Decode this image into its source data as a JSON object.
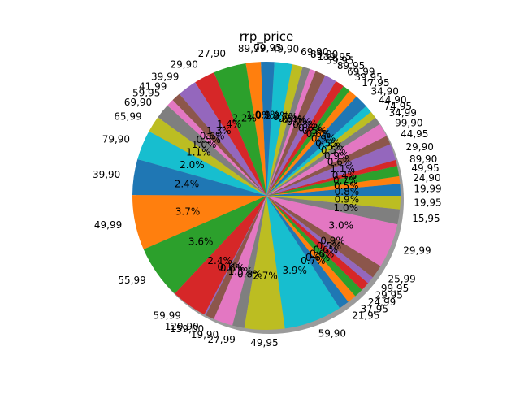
{
  "chart_data": {
    "type": "pie",
    "title": "rrp_price",
    "shadow": true,
    "legend": "none",
    "palette": [
      "#1f77b4",
      "#ff7f0e",
      "#2ca02c",
      "#d62728",
      "#9467bd",
      "#8c564b",
      "#e377c2",
      "#7f7f7f",
      "#bcbd22",
      "#17becf"
    ],
    "slices": [
      {
        "label": "19,99",
        "pct": "0.8%"
      },
      {
        "label": "24,90",
        "pct": "0.5%"
      },
      {
        "label": "49,95",
        "pct": "0.7%"
      },
      {
        "label": "89,90",
        "pct": "0.4%"
      },
      {
        "label": "29,90",
        "pct": "1.1%"
      },
      {
        "label": "44,95",
        "pct": "0.6%"
      },
      {
        "label": "99,90",
        "pct": "0.9%"
      },
      {
        "label": "34,99",
        "pct": "0.5%"
      },
      {
        "label": "74,95",
        "pct": "0.5%"
      },
      {
        "label": "44,90",
        "pct": "0.5%"
      },
      {
        "label": "34,90",
        "pct": "0.9%"
      },
      {
        "label": "17,95",
        "pct": "0.6%"
      },
      {
        "label": "39,95",
        "pct": "0.5%"
      },
      {
        "label": "69,99",
        "pct": "0.6%"
      },
      {
        "label": "89,95",
        "pct": "0.8%"
      },
      {
        "label": "59,95",
        "pct": "0.7%"
      },
      {
        "label": "139,95",
        "pct": "0.4%"
      },
      {
        "label": "89,90",
        "pct": "0.5%"
      },
      {
        "label": "69,90",
        "pct": "0.7%"
      },
      {
        "label": "49,90",
        "pct": "1.2%"
      },
      {
        "label": "79,95",
        "pct": "0.9%"
      },
      {
        "label": "89,99",
        "pct": "1.0%"
      },
      {
        "label": "27,90",
        "pct": "2.2%"
      },
      {
        "label": "29,90",
        "pct": "1.4%"
      },
      {
        "label": "39,99",
        "pct": "1.3%"
      },
      {
        "label": "41,99",
        "pct": "0.6%"
      },
      {
        "label": "59,95",
        "pct": "0.5%"
      },
      {
        "label": "69,90",
        "pct": "1.0%"
      },
      {
        "label": "65,99",
        "pct": "1.1%"
      },
      {
        "label": "79,90",
        "pct": "2.0%"
      },
      {
        "label": "39,90",
        "pct": "2.4%"
      },
      {
        "label": "49,99",
        "pct": "3.7%"
      },
      {
        "label": "55,99",
        "pct": "3.6%"
      },
      {
        "label": "59,99",
        "pct": "2.4%"
      },
      {
        "label": "129,90",
        "pct": "0.1%"
      },
      {
        "label": "159,00",
        "pct": "0.6%"
      },
      {
        "label": "19,90",
        "pct": "1.3%"
      },
      {
        "label": "27,99",
        "pct": "0.8%"
      },
      {
        "label": "49,95",
        "pct": "2.7%"
      },
      {
        "label": "59,90",
        "pct": "3.9%"
      },
      {
        "label": "21,95",
        "pct": "0.7%"
      },
      {
        "label": "37,95",
        "pct": "0.6%"
      },
      {
        "label": "24,99",
        "pct": "0.6%"
      },
      {
        "label": "29,95",
        "pct": "0.6%"
      },
      {
        "label": "99,95",
        "pct": "0.5%"
      },
      {
        "label": "25,99",
        "pct": "0.9%"
      },
      {
        "label": "29,99",
        "pct": "3.0%"
      },
      {
        "label": "15,95",
        "pct": "1.0%"
      },
      {
        "label": "19,95",
        "pct": "0.9%"
      }
    ]
  }
}
